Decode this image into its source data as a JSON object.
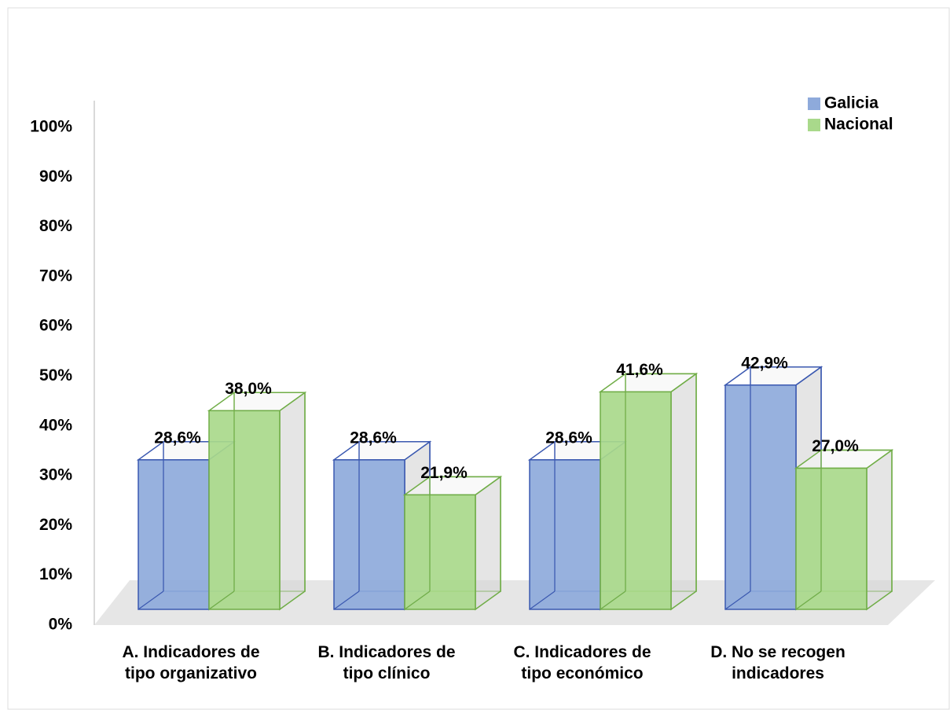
{
  "chart_data": {
    "type": "bar3d",
    "categories": [
      [
        "A. Indicadores de",
        "tipo organizativo"
      ],
      [
        "B. Indicadores de",
        "tipo clínico"
      ],
      [
        "C. Indicadores de",
        "tipo económico"
      ],
      [
        "D. No se recogen",
        "indicadores"
      ]
    ],
    "series": [
      {
        "name": "Galicia",
        "color": "#8eaadb",
        "edge": "#3a58b0",
        "values": [
          28.6,
          28.6,
          28.6,
          42.9
        ],
        "value_labels": [
          "28,6%",
          "28,6%",
          "28,6%",
          "42,9%"
        ]
      },
      {
        "name": "Nacional",
        "color": "#a9d98b",
        "edge": "#70ad47",
        "values": [
          38.0,
          21.9,
          41.6,
          27.0
        ],
        "value_labels": [
          "38,0%",
          "21,9%",
          "41,6%",
          "27,0%"
        ]
      }
    ],
    "ylim": [
      0,
      100
    ],
    "yticks": [
      {
        "value": 0,
        "label": "0%"
      },
      {
        "value": 10,
        "label": "10%"
      },
      {
        "value": 20,
        "label": "20%"
      },
      {
        "value": 30,
        "label": "30%"
      },
      {
        "value": 40,
        "label": "40%"
      },
      {
        "value": 50,
        "label": "50%"
      },
      {
        "value": 60,
        "label": "60%"
      },
      {
        "value": 70,
        "label": "70%"
      },
      {
        "value": 80,
        "label": "80%"
      },
      {
        "value": 90,
        "label": "90%"
      },
      {
        "value": 100,
        "label": "100%"
      }
    ],
    "grid": false,
    "legend": "top-right"
  }
}
